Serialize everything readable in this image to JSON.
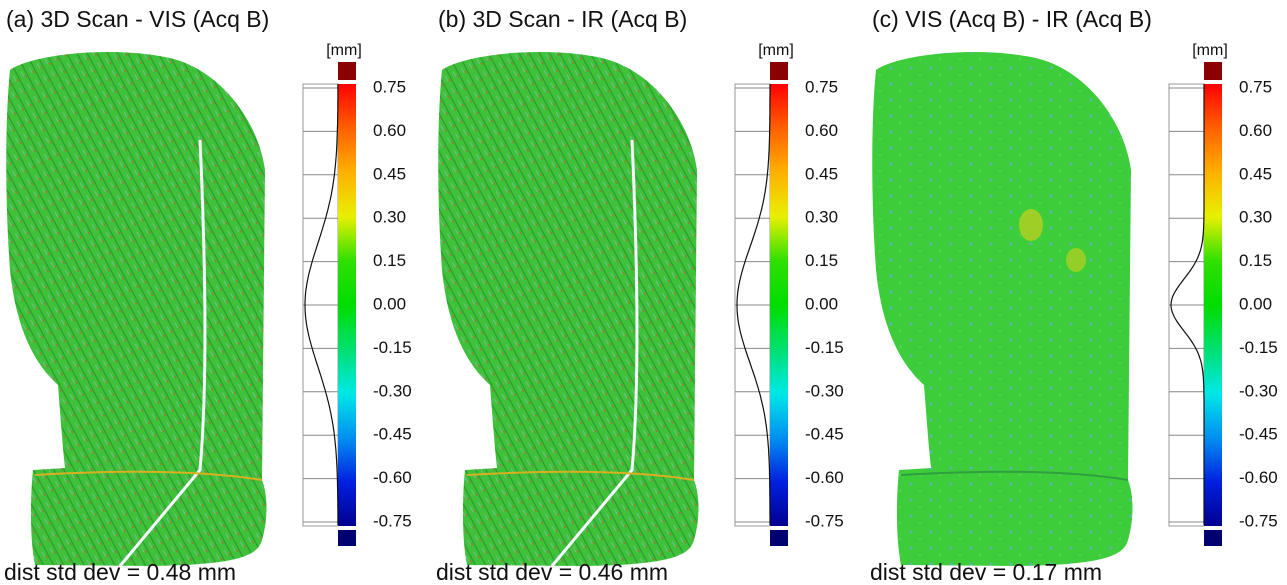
{
  "panels": [
    {
      "title": "(a) 3D Scan - VIS (Acq B)",
      "unit": "[mm]",
      "ticks": [
        "0.75",
        "0.60",
        "0.45",
        "0.30",
        "0.15",
        "0.00",
        "-0.15",
        "-0.30",
        "-0.45",
        "-0.60",
        "-0.75"
      ],
      "caption": "dist std dev = 0.48 mm"
    },
    {
      "title": "(b) 3D Scan - IR (Acq B)",
      "unit": "[mm]",
      "ticks": [
        "0.75",
        "0.60",
        "0.45",
        "0.30",
        "0.15",
        "0.00",
        "-0.15",
        "-0.30",
        "-0.45",
        "-0.60",
        "-0.75"
      ],
      "caption": "dist std dev = 0.46 mm"
    },
    {
      "title": "(c) VIS (Acq B) - IR (Acq B)",
      "unit": "[mm]",
      "ticks": [
        "0.75",
        "0.60",
        "0.45",
        "0.30",
        "0.15",
        "0.00",
        "-0.15",
        "-0.30",
        "-0.45",
        "-0.60",
        "-0.75"
      ],
      "caption": "dist std dev = 0.17 mm"
    }
  ]
}
